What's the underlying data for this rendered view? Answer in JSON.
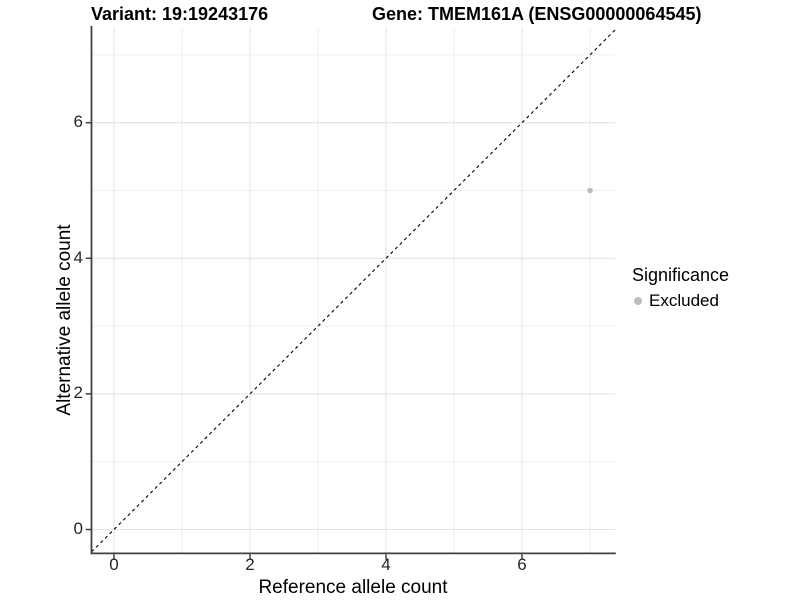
{
  "chart_data": {
    "type": "scatter",
    "titles": {
      "variant": "Variant: 19:19243176",
      "gene": "Gene: TMEM161A (ENSG00000064545)"
    },
    "xlabel": "Reference allele count",
    "ylabel": "Alternative allele count",
    "x_ticks": [
      "0",
      "2",
      "4",
      "6"
    ],
    "y_ticks": [
      "0",
      "2",
      "4",
      "6"
    ],
    "x_tick_values": [
      0,
      2,
      4,
      6
    ],
    "y_tick_values": [
      0,
      2,
      4,
      6
    ],
    "xlim": [
      -0.33,
      7.38
    ],
    "ylim": [
      -0.35,
      7.41
    ],
    "grid": {
      "major_at": [
        0,
        2,
        4,
        6
      ],
      "minor_at": [
        1,
        3,
        5,
        7
      ]
    },
    "reference_line": {
      "kind": "identity",
      "equation": "y = x",
      "style": "dashed",
      "color": "#000000"
    },
    "series": [
      {
        "name": "Excluded",
        "marker": "circle",
        "color": "#bdbdbd",
        "point_radius": 2.8,
        "points": [
          {
            "x": 7,
            "y": 5
          }
        ]
      }
    ],
    "legend": {
      "title": "Significance",
      "position": "right",
      "entries": [
        {
          "label": "Excluded",
          "color": "#bdbdbd"
        }
      ]
    }
  },
  "colors": {
    "background": "#ffffff",
    "grid_major": "#e3e3e3",
    "grid_minor": "#efefef",
    "axis_line": "#404040",
    "tick_label": "#262626",
    "title": "#000000"
  }
}
